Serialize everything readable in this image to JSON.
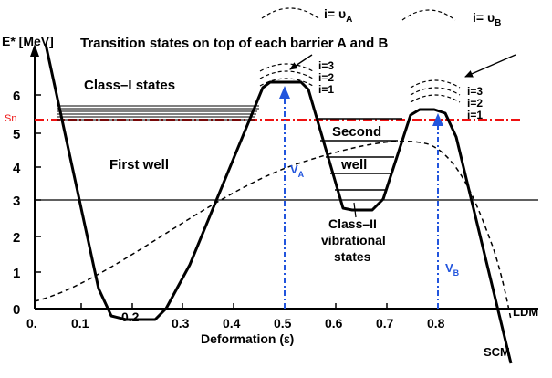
{
  "y_axis_title": "E* [MeV]",
  "x_axis_title": "Deformation (ε)",
  "x_ticks": [
    "0.",
    "0.1",
    "0.2",
    "0.3",
    "0.4",
    "0.5",
    "0.6",
    "0.7",
    "0.8"
  ],
  "y_ticks": [
    "0",
    "1",
    "2",
    "3",
    "4",
    "5",
    "6"
  ],
  "sn_label": "Sn",
  "transition_title": "Transition states on top of each barrier A and B",
  "class1_label": "Class–I states",
  "first_well_label": "First well",
  "second_well_label_1": "Second",
  "second_well_label_2": "well",
  "class2_label_1": "Class–II",
  "class2_label_2": "vibrational",
  "class2_label_3": "states",
  "barrier_a": {
    "top_label": "i= υ",
    "top_sub": "A",
    "levels": [
      "i=3",
      "i=2",
      "i=1"
    ],
    "v_label": "V",
    "v_sub": "A"
  },
  "barrier_b": {
    "top_label": "i= υ",
    "top_sub": "B",
    "levels": [
      "i=3",
      "i=2",
      "i=1"
    ],
    "v_label": "V",
    "v_sub": "B"
  },
  "ldm_label": "LDM",
  "scm_label": "SCM",
  "colors": {
    "sn_line": "#ee1111",
    "blue_marker": "#2255dd",
    "curve": "#000000"
  }
}
